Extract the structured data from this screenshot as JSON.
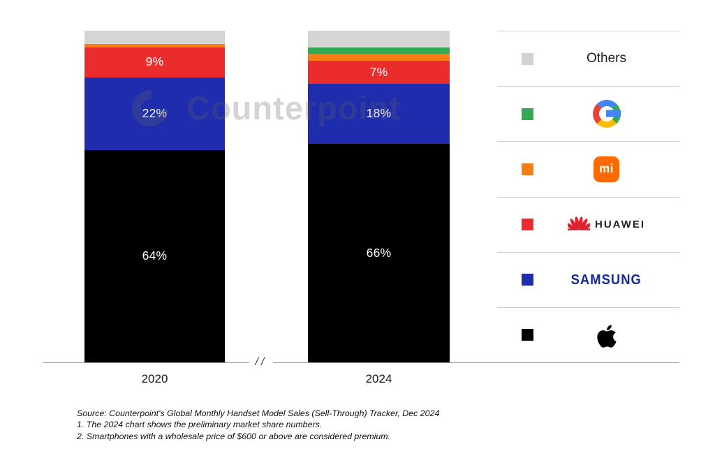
{
  "watermark": {
    "text": "Counterpoint"
  },
  "chart_data": {
    "type": "bar",
    "stacked": true,
    "title": "",
    "categories": [
      "2020",
      "2024"
    ],
    "unit": "percent",
    "ylim": [
      0,
      100
    ],
    "axis_break_symbol": "//",
    "stack_order_top_to_bottom": [
      "Others",
      "Google",
      "Xiaomi",
      "Huawei",
      "Samsung",
      "Apple"
    ],
    "series": [
      {
        "name": "Apple",
        "color": "#000000",
        "values": [
          64,
          66
        ],
        "labels": [
          "64%",
          "66%"
        ]
      },
      {
        "name": "Samsung",
        "color": "#1f2cae",
        "values": [
          22,
          18
        ],
        "labels": [
          "22%",
          "18%"
        ]
      },
      {
        "name": "Huawei",
        "color": "#ea2d2c",
        "values": [
          9,
          7
        ],
        "labels": [
          "9%",
          "7%"
        ]
      },
      {
        "name": "Xiaomi",
        "color": "#f87d14",
        "values": [
          1,
          2
        ],
        "labels": [
          "",
          ""
        ]
      },
      {
        "name": "Google",
        "color": "#34a853",
        "values": [
          0,
          2
        ],
        "labels": [
          "",
          ""
        ]
      },
      {
        "name": "Others",
        "color": "#d5d5d5",
        "values": [
          4,
          5
        ],
        "labels": [
          "",
          ""
        ]
      }
    ]
  },
  "legend": {
    "items": [
      {
        "name": "Others",
        "swatch": "#d2d2d2",
        "label": "Others"
      },
      {
        "name": "Google",
        "swatch": "#34a853",
        "logo": "google-g-logo"
      },
      {
        "name": "Xiaomi",
        "swatch": "#f87d14",
        "logo": "xiaomi-mi-logo",
        "logo_text": "mi"
      },
      {
        "name": "Huawei",
        "swatch": "#ea2d2c",
        "logo": "huawei-flower-logo",
        "logo_text": "HUAWEI"
      },
      {
        "name": "Samsung",
        "swatch": "#1f2cae",
        "logo": "samsung-wordmark",
        "logo_text": "SAMSUNG"
      },
      {
        "name": "Apple",
        "swatch": "#000000",
        "logo": "apple-logo"
      }
    ]
  },
  "footnotes": [
    "Source: Counterpoint's Global Monthly Handset Model Sales (Sell-Through) Tracker, Dec 2024",
    "1. The 2024 chart shows the preliminary market share numbers.",
    "2. Smartphones with a wholesale price of $600 or above are considered premium."
  ]
}
